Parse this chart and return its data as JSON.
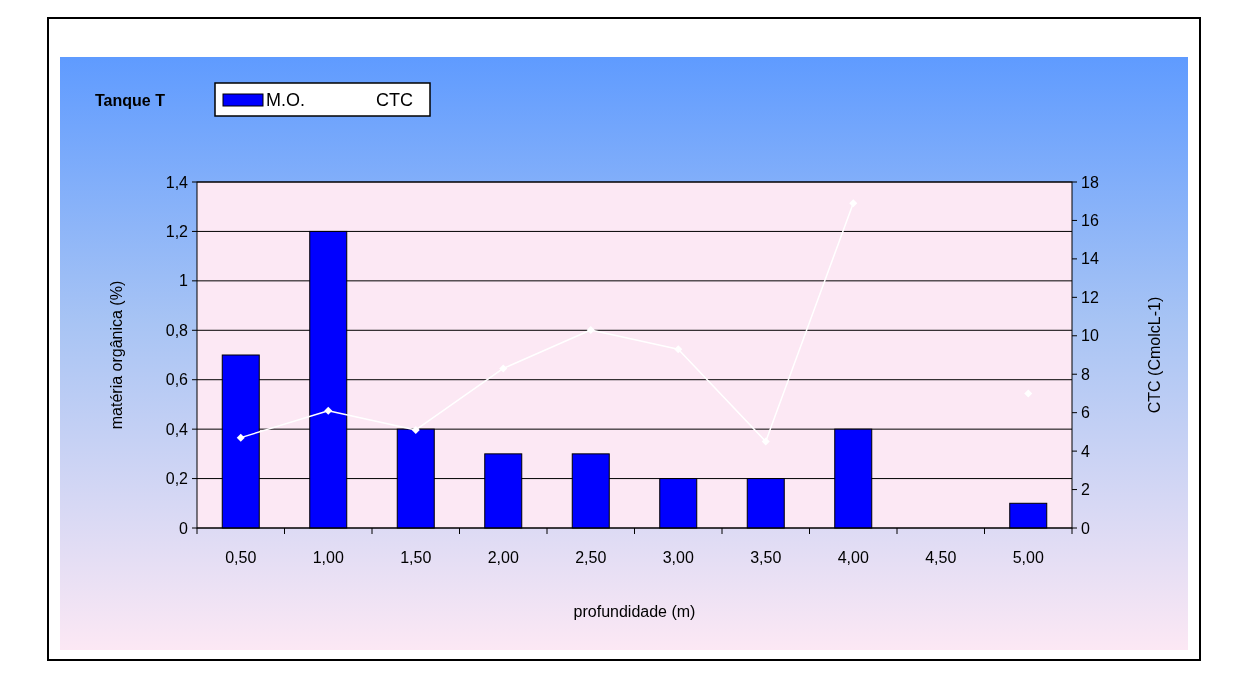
{
  "chart_data": {
    "type": "bar",
    "legend_title": "Tanque T",
    "xlabel": "profundidade (m)",
    "ylabel": "matéria orgânica (%)",
    "y2label": "CTC (CmolcL-1)",
    "categories": [
      "0,50",
      "1,00",
      "1,50",
      "2,00",
      "2,50",
      "3,00",
      "3,50",
      "4,00",
      "4,50",
      "5,00"
    ],
    "series": [
      {
        "name": "M.O.",
        "color": "#0000ff",
        "values": [
          0.7,
          1.2,
          0.4,
          0.3,
          0.3,
          0.2,
          0.2,
          0.4,
          null,
          0.1
        ]
      },
      {
        "name": "CTC",
        "type": "line",
        "axis": "y2",
        "color": "#ffffff",
        "marker": "diamond",
        "values": [
          4.7,
          6.1,
          5.1,
          8.3,
          10.3,
          9.3,
          4.5,
          16.9,
          null,
          7.0
        ]
      }
    ],
    "ylim": [
      0,
      1.4
    ],
    "yticks": [
      0,
      {
        "value": 0.2,
        "label": "0,2"
      },
      {
        "value": 0.4,
        "label": "0,4"
      },
      {
        "value": 0.6,
        "label": "0,6"
      },
      {
        "value": 0.8,
        "label": "0,8"
      },
      1,
      {
        "value": 1.2,
        "label": "1,2"
      },
      {
        "value": 1.4,
        "label": "1,4"
      }
    ],
    "y2lim": [
      0,
      18
    ],
    "y2ticks": [
      0,
      2,
      4,
      6,
      8,
      10,
      12,
      14,
      16,
      18
    ],
    "grid": "y",
    "legend": "top left"
  }
}
